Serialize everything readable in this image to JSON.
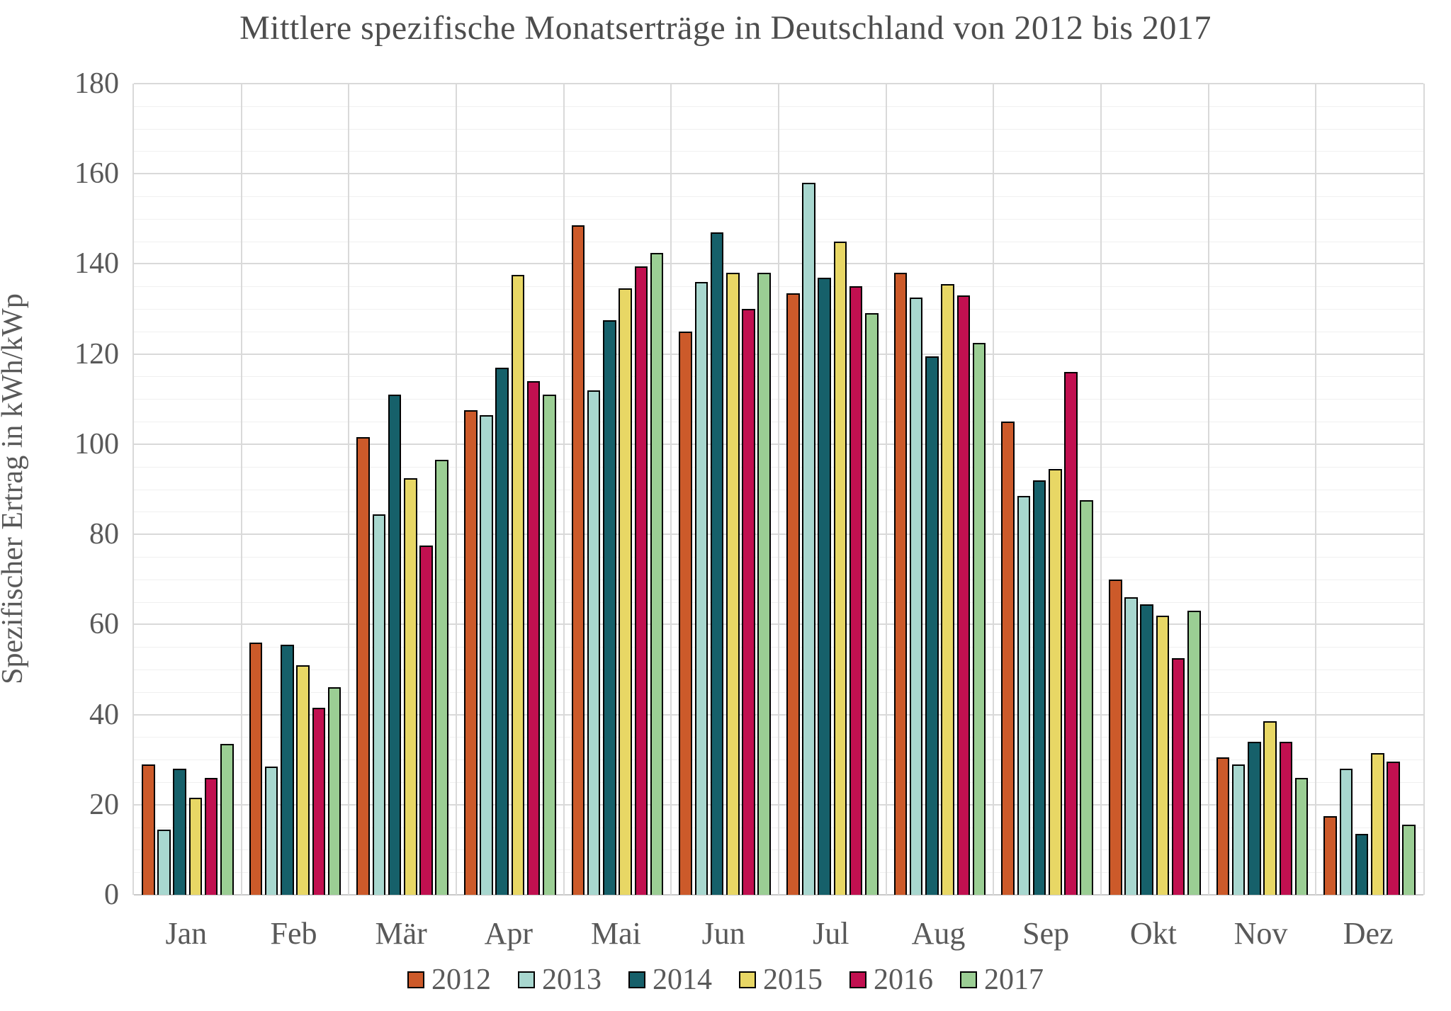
{
  "title": "Mittlere spezifische Monatserträge in Deutschland von 2012 bis 2017",
  "chart_data": {
    "type": "bar",
    "title": "Mittlere spezifische Monatserträge in Deutschland von 2012 bis 2017",
    "xlabel": "",
    "ylabel": "Spezifischer Ertrag in kWh/kWp",
    "ylim": [
      0,
      180
    ],
    "ytick_step": 20,
    "minor_ytick_step": 5,
    "grid": true,
    "legend_position": "bottom",
    "categories": [
      "Jan",
      "Feb",
      "Mär",
      "Apr",
      "Mai",
      "Jun",
      "Jul",
      "Aug",
      "Sep",
      "Okt",
      "Nov",
      "Dez"
    ],
    "series": [
      {
        "name": "2012",
        "color": "#cc5a2a",
        "values": [
          29,
          56,
          101.5,
          107.5,
          148.5,
          125,
          133.5,
          138,
          105,
          70,
          30.5,
          17.5
        ]
      },
      {
        "name": "2013",
        "color": "#a8d7cf",
        "values": [
          14.5,
          28.5,
          84.5,
          106.5,
          112,
          136,
          158,
          132.5,
          88.5,
          66,
          29,
          28
        ]
      },
      {
        "name": "2014",
        "color": "#16606a",
        "values": [
          28,
          55.5,
          111,
          117,
          127.5,
          147,
          137,
          119.5,
          92,
          64.5,
          34,
          13.5
        ]
      },
      {
        "name": "2015",
        "color": "#e8d765",
        "values": [
          21.5,
          51,
          92.5,
          137.5,
          134.5,
          138,
          145,
          135.5,
          94.5,
          62,
          38.5,
          31.5
        ]
      },
      {
        "name": "2016",
        "color": "#c11050",
        "values": [
          26,
          41.5,
          77.5,
          114,
          139.5,
          130,
          135,
          133,
          116,
          52.5,
          34,
          29.5
        ]
      },
      {
        "name": "2017",
        "color": "#9bce94",
        "values": [
          33.5,
          46,
          96.5,
          111,
          142.5,
          138,
          129,
          122.5,
          87.5,
          63,
          26,
          15.5
        ]
      }
    ]
  }
}
